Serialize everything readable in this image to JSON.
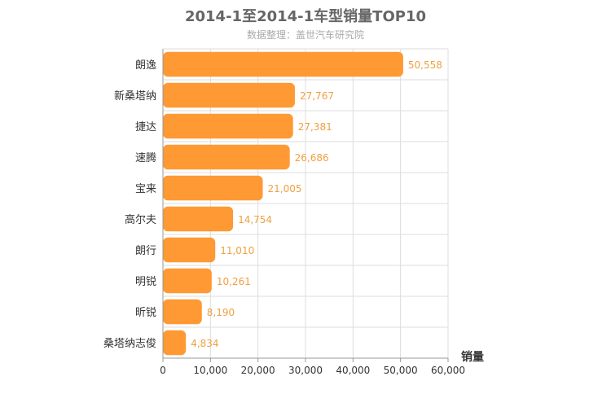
{
  "chart_data": {
    "type": "bar",
    "orientation": "horizontal",
    "title": "2014-1至2014-1车型销量TOP10",
    "subtitle": "数据整理：盖世汽车研究院",
    "categories": [
      "朗逸",
      "新桑塔纳",
      "捷达",
      "速腾",
      "宝来",
      "高尔夫",
      "朗行",
      "明锐",
      "昕锐",
      "桑塔纳志俊"
    ],
    "values": [
      50558,
      27767,
      27381,
      26686,
      21005,
      14754,
      11010,
      10261,
      8190,
      4834
    ],
    "value_labels": [
      "50,558",
      "27,767",
      "27,381",
      "26,686",
      "21,005",
      "14,754",
      "11,010",
      "10,261",
      "8,190",
      "4,834"
    ],
    "xlabel": "销量",
    "ylabel": "",
    "xlim": [
      0,
      60000
    ],
    "x_ticks": [
      0,
      10000,
      20000,
      30000,
      40000,
      50000,
      60000
    ],
    "x_tick_labels": [
      "0",
      "10,000",
      "20,000",
      "30,000",
      "40,000",
      "50,000",
      "60,000"
    ],
    "grid": true,
    "bar_color": "#ff9933",
    "value_label_color": "#f0a040"
  }
}
